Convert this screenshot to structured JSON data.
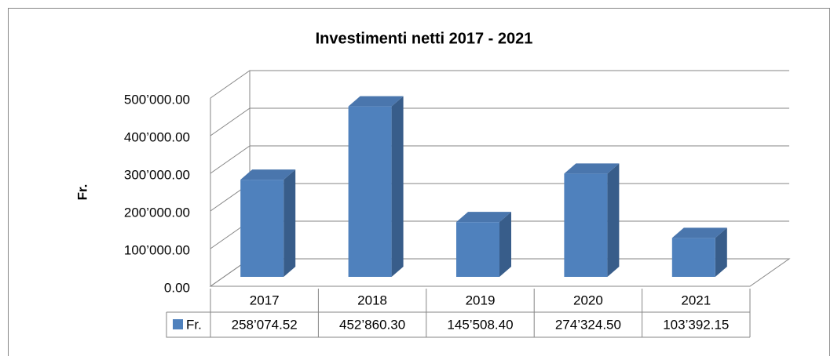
{
  "chart_data": {
    "type": "bar3d",
    "title": "Investimenti netti 2017 - 2021",
    "y_label": "Fr.",
    "categories": [
      "2017",
      "2018",
      "2019",
      "2020",
      "2021"
    ],
    "series": [
      {
        "name": "Fr.",
        "color": "#4f81bd",
        "values": [
          258074.52,
          452860.3,
          145508.4,
          274324.5,
          103392.15
        ],
        "value_labels": [
          "258’074.52",
          "452’860.30",
          "145’508.40",
          "274’324.50",
          "103’392.15"
        ]
      }
    ],
    "ylim": [
      0,
      500000
    ],
    "yticks": [
      {
        "value": 0,
        "label": "0.00"
      },
      {
        "value": 100000,
        "label": "100’000.00"
      },
      {
        "value": 200000,
        "label": "200’000.00"
      },
      {
        "value": 300000,
        "label": "300’000.00"
      },
      {
        "value": 400000,
        "label": "400’000.00"
      },
      {
        "value": 500000,
        "label": "500’000.00"
      }
    ],
    "grid": true,
    "data_table": true
  }
}
